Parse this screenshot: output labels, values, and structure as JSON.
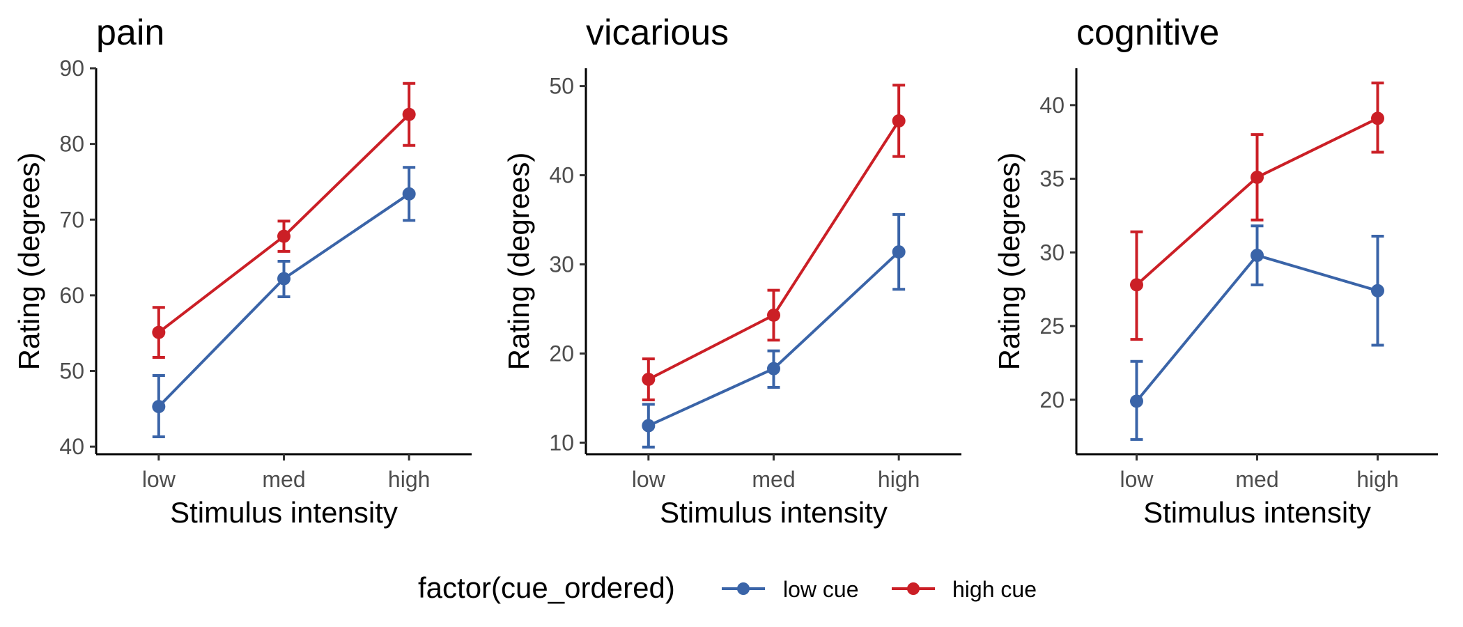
{
  "chart_data": [
    {
      "type": "line",
      "title": "pain",
      "xlabel": "Stimulus intensity",
      "ylabel": "Rating (degrees)",
      "categories": [
        "low",
        "med",
        "high"
      ],
      "ylim": [
        39,
        90
      ],
      "yticks": [
        40,
        50,
        60,
        70,
        80,
        90
      ],
      "grid": false,
      "series": [
        {
          "name": "low cue",
          "color": "#3A64A8",
          "values": [
            45.3,
            62.2,
            73.4
          ],
          "lower": [
            41.3,
            59.8,
            69.9
          ],
          "upper": [
            49.4,
            64.5,
            76.9
          ]
        },
        {
          "name": "high cue",
          "color": "#CB1F26",
          "values": [
            55.1,
            67.8,
            83.9
          ],
          "lower": [
            51.8,
            65.8,
            79.8
          ],
          "upper": [
            58.4,
            69.8,
            88.0
          ]
        }
      ]
    },
    {
      "type": "line",
      "title": "vicarious",
      "xlabel": "Stimulus intensity",
      "ylabel": "Rating (degrees)",
      "categories": [
        "low",
        "med",
        "high"
      ],
      "ylim": [
        8.7,
        52
      ],
      "yticks": [
        10,
        20,
        30,
        40,
        50
      ],
      "grid": false,
      "series": [
        {
          "name": "low cue",
          "color": "#3A64A8",
          "values": [
            11.9,
            18.3,
            31.4
          ],
          "lower": [
            9.5,
            16.2,
            27.2
          ],
          "upper": [
            14.3,
            20.3,
            35.6
          ]
        },
        {
          "name": "high cue",
          "color": "#CB1F26",
          "values": [
            17.1,
            24.3,
            46.1
          ],
          "lower": [
            14.8,
            21.5,
            42.1
          ],
          "upper": [
            19.4,
            27.1,
            50.1
          ]
        }
      ]
    },
    {
      "type": "line",
      "title": "cognitive",
      "xlabel": "Stimulus intensity",
      "ylabel": "Rating (degrees)",
      "categories": [
        "low",
        "med",
        "high"
      ],
      "ylim": [
        16.3,
        42.5
      ],
      "yticks": [
        20,
        25,
        30,
        35,
        40
      ],
      "grid": false,
      "series": [
        {
          "name": "low cue",
          "color": "#3A64A8",
          "values": [
            19.9,
            29.8,
            27.4
          ],
          "lower": [
            17.3,
            27.8,
            23.7
          ],
          "upper": [
            22.6,
            31.8,
            31.1
          ]
        },
        {
          "name": "high cue",
          "color": "#CB1F26",
          "values": [
            27.8,
            35.1,
            39.1
          ],
          "lower": [
            24.1,
            32.2,
            36.8
          ],
          "upper": [
            31.4,
            38.0,
            41.5
          ]
        }
      ]
    }
  ],
  "legend": {
    "title": "factor(cue_ordered)",
    "position": "bottom",
    "items": [
      {
        "label": "low cue",
        "color": "#3A64A8"
      },
      {
        "label": "high cue",
        "color": "#CB1F26"
      }
    ]
  }
}
